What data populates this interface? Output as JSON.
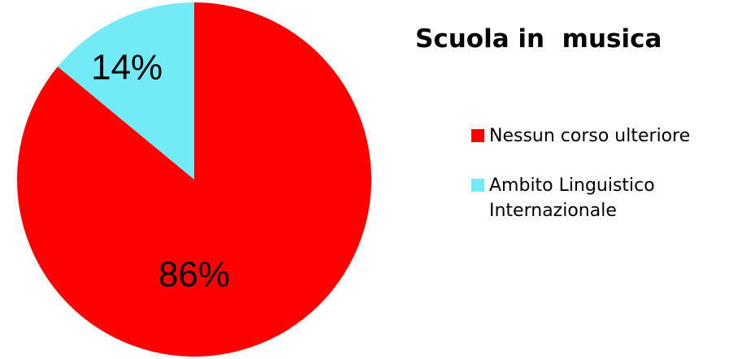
{
  "chart_data": {
    "type": "pie",
    "title": "Scuola in  musica",
    "categories": [
      "Nessun corso ulteriore",
      "Ambito Linguistico Internazionale"
    ],
    "values": [
      86,
      14
    ],
    "data_labels": [
      "86%",
      "14%"
    ],
    "colors": [
      "#ff0000",
      "#73ebf7"
    ],
    "legend_position": "right",
    "start": "12 o'clock",
    "direction": "clockwise"
  },
  "legend": [
    {
      "label": "Nessun corso ulteriore",
      "color": "#ff0000"
    },
    {
      "label": "Ambito Linguistico Internazionale",
      "color": "#73ebf7"
    }
  ]
}
